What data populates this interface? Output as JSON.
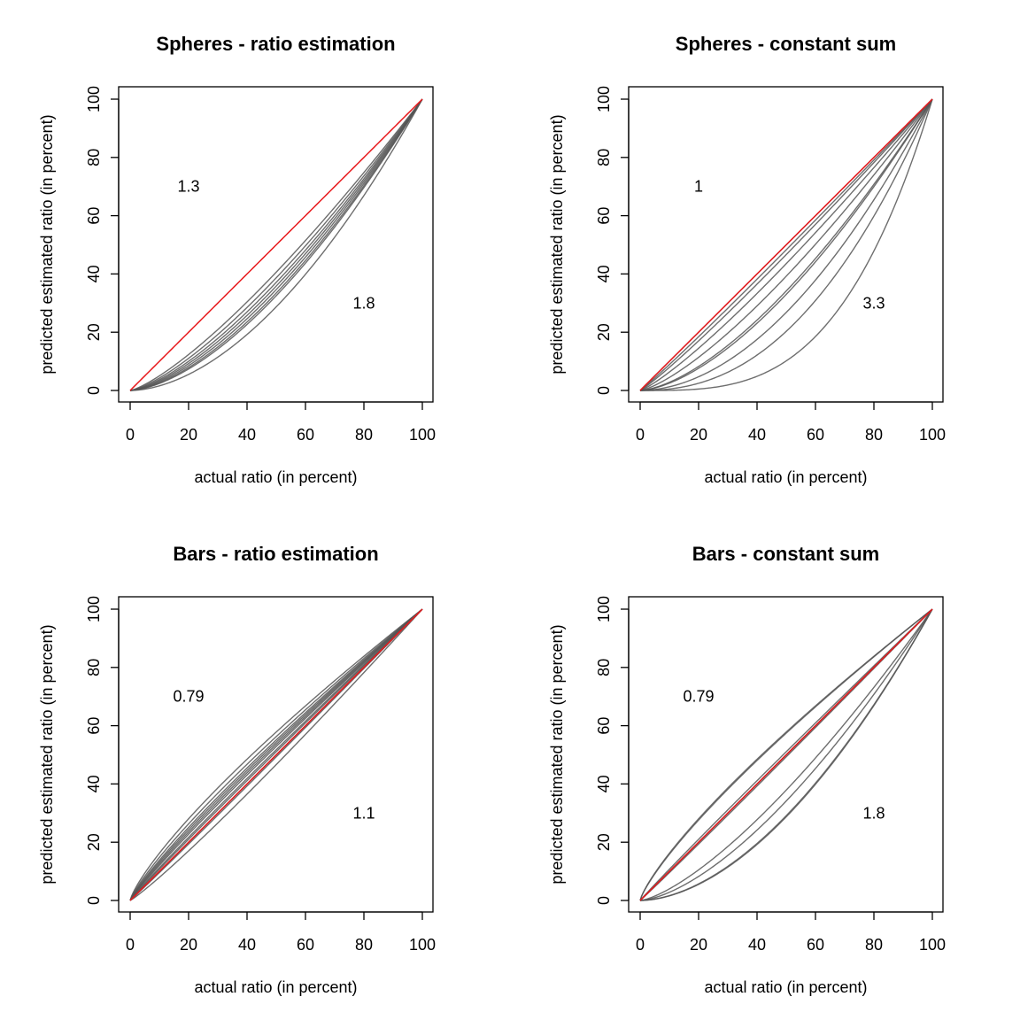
{
  "chart_data": [
    {
      "type": "line",
      "title": "Spheres - ratio estimation",
      "xlabel": "actual ratio (in percent)",
      "ylabel": "predicted estimated ratio (in percent)",
      "xlim": [
        0,
        100
      ],
      "ylim": [
        0,
        100
      ],
      "x_ticks": [
        0,
        20,
        40,
        60,
        80,
        100
      ],
      "y_ticks": [
        0,
        20,
        40,
        60,
        80,
        100
      ],
      "x_tick_labels": [
        "0",
        "20",
        "40",
        "60",
        "80",
        "100"
      ],
      "y_tick_labels": [
        "0",
        "20",
        "40",
        "60",
        "80",
        "100"
      ],
      "curve_form": "y = 100 * (x/100)^exponent",
      "curve_exponents": [
        1.3,
        1.37,
        1.43,
        1.48,
        1.53,
        1.58,
        1.62,
        1.8
      ],
      "reference_line_exponent": 1,
      "annotations": [
        {
          "text": "1.3",
          "x": 20,
          "y": 70
        },
        {
          "text": "1.8",
          "x": 80,
          "y": 30
        }
      ],
      "grid": false,
      "colors": {
        "curves": "#555555",
        "reference": "#e8191c"
      }
    },
    {
      "type": "line",
      "title": "Spheres - constant sum",
      "xlabel": "actual ratio (in percent)",
      "ylabel": "predicted estimated ratio (in percent)",
      "xlim": [
        0,
        100
      ],
      "ylim": [
        0,
        100
      ],
      "x_ticks": [
        0,
        20,
        40,
        60,
        80,
        100
      ],
      "y_ticks": [
        0,
        20,
        40,
        60,
        80,
        100
      ],
      "x_tick_labels": [
        "0",
        "20",
        "40",
        "60",
        "80",
        "100"
      ],
      "y_tick_labels": [
        "0",
        "20",
        "40",
        "60",
        "80",
        "100"
      ],
      "curve_form": "y = 100 * (x/100)^exponent",
      "curve_exponents": [
        1.0,
        1.05,
        1.1,
        1.2,
        1.35,
        1.55,
        1.6,
        1.9,
        2.3,
        3.3
      ],
      "reference_line_exponent": 1,
      "annotations": [
        {
          "text": "1",
          "x": 20,
          "y": 70
        },
        {
          "text": "3.3",
          "x": 80,
          "y": 30
        }
      ],
      "grid": false,
      "colors": {
        "curves": "#555555",
        "reference": "#e8191c"
      }
    },
    {
      "type": "line",
      "title": "Bars - ratio estimation",
      "xlabel": "actual ratio (in percent)",
      "ylabel": "predicted estimated ratio (in percent)",
      "xlim": [
        0,
        100
      ],
      "ylim": [
        0,
        100
      ],
      "x_ticks": [
        0,
        20,
        40,
        60,
        80,
        100
      ],
      "y_ticks": [
        0,
        20,
        40,
        60,
        80,
        100
      ],
      "x_tick_labels": [
        "0",
        "20",
        "40",
        "60",
        "80",
        "100"
      ],
      "y_tick_labels": [
        "0",
        "20",
        "40",
        "60",
        "80",
        "100"
      ],
      "curve_form": "y = 100 * (x/100)^exponent",
      "curve_exponents": [
        0.79,
        0.83,
        0.86,
        0.88,
        0.9,
        0.92,
        0.95,
        0.97,
        1.0,
        1.02,
        1.1
      ],
      "reference_line_exponent": 1,
      "annotations": [
        {
          "text": "0.79",
          "x": 20,
          "y": 70
        },
        {
          "text": "1.1",
          "x": 80,
          "y": 30
        }
      ],
      "grid": false,
      "colors": {
        "curves": "#555555",
        "reference": "#e8191c"
      }
    },
    {
      "type": "line",
      "title": "Bars - constant sum",
      "xlabel": "actual ratio (in percent)",
      "ylabel": "predicted estimated ratio (in percent)",
      "xlim": [
        0,
        100
      ],
      "ylim": [
        0,
        100
      ],
      "x_ticks": [
        0,
        20,
        40,
        60,
        80,
        100
      ],
      "y_ticks": [
        0,
        20,
        40,
        60,
        80,
        100
      ],
      "x_tick_labels": [
        "0",
        "20",
        "40",
        "60",
        "80",
        "100"
      ],
      "y_tick_labels": [
        "0",
        "20",
        "40",
        "60",
        "80",
        "100"
      ],
      "curve_form": "y = 100 * (x/100)^exponent",
      "curve_exponents": [
        0.79,
        0.8,
        0.97,
        1.0,
        1.0,
        1.02,
        1.4,
        1.55,
        1.78,
        1.8
      ],
      "reference_line_exponent": 1,
      "annotations": [
        {
          "text": "0.79",
          "x": 20,
          "y": 70
        },
        {
          "text": "1.8",
          "x": 80,
          "y": 30
        }
      ],
      "grid": false,
      "colors": {
        "curves": "#555555",
        "reference": "#e8191c"
      }
    }
  ]
}
